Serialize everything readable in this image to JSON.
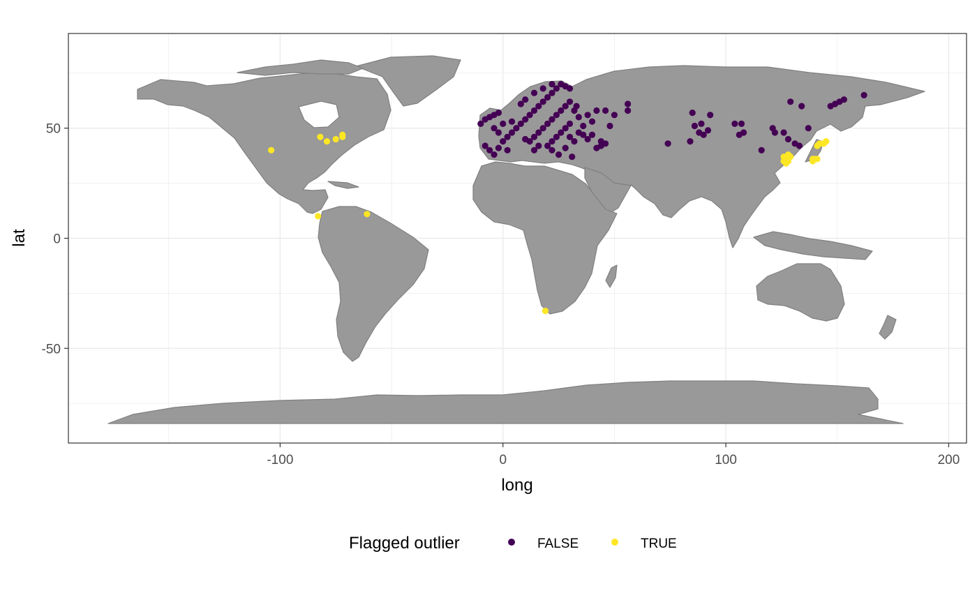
{
  "chart_data": {
    "type": "scatter",
    "background": "world-map",
    "xlabel": "long",
    "ylabel": "lat",
    "xlim": [
      -195,
      208
    ],
    "ylim": [
      -93,
      93
    ],
    "x_ticks": [
      {
        "value": -100,
        "label": "-100"
      },
      {
        "value": 0,
        "label": "0"
      },
      {
        "value": 100,
        "label": "100"
      },
      {
        "value": 200,
        "label": "200"
      }
    ],
    "y_ticks": [
      {
        "value": -50,
        "label": "-50"
      },
      {
        "value": 0,
        "label": "0"
      },
      {
        "value": 50,
        "label": "50"
      }
    ],
    "grid": true,
    "legend": {
      "title": "Flagged outlier",
      "position": "bottom",
      "entries": [
        {
          "key": "false",
          "label": "FALSE",
          "color": "#440154"
        },
        {
          "key": "true",
          "label": "TRUE",
          "color": "#FDE725"
        }
      ]
    },
    "colors": {
      "land": "#999999",
      "border": "#808080",
      "grid": "#ebebeb",
      "panel_border": "#333333"
    },
    "series": [
      {
        "key": "false",
        "points": [
          [
            -10,
            52
          ],
          [
            -8,
            54
          ],
          [
            -6,
            55
          ],
          [
            -4,
            56
          ],
          [
            -2,
            57
          ],
          [
            -8,
            42
          ],
          [
            -6,
            40
          ],
          [
            -4,
            38
          ],
          [
            -2,
            41
          ],
          [
            0,
            44
          ],
          [
            2,
            46
          ],
          [
            4,
            48
          ],
          [
            6,
            50
          ],
          [
            8,
            52
          ],
          [
            10,
            54
          ],
          [
            12,
            56
          ],
          [
            14,
            58
          ],
          [
            16,
            60
          ],
          [
            18,
            62
          ],
          [
            20,
            64
          ],
          [
            22,
            66
          ],
          [
            24,
            68
          ],
          [
            26,
            70
          ],
          [
            28,
            69
          ],
          [
            30,
            68
          ],
          [
            10,
            45
          ],
          [
            12,
            44
          ],
          [
            14,
            46
          ],
          [
            16,
            48
          ],
          [
            18,
            50
          ],
          [
            20,
            52
          ],
          [
            22,
            54
          ],
          [
            24,
            56
          ],
          [
            26,
            58
          ],
          [
            28,
            60
          ],
          [
            30,
            62
          ],
          [
            8,
            61
          ],
          [
            10,
            63
          ],
          [
            14,
            66
          ],
          [
            18,
            68
          ],
          [
            22,
            70
          ],
          [
            -4,
            50
          ],
          [
            0,
            52
          ],
          [
            4,
            53
          ],
          [
            -2,
            48
          ],
          [
            2,
            40
          ],
          [
            20,
            42
          ],
          [
            22,
            44
          ],
          [
            24,
            46
          ],
          [
            26,
            48
          ],
          [
            28,
            50
          ],
          [
            30,
            52
          ],
          [
            22,
            40
          ],
          [
            25,
            38
          ],
          [
            28,
            41
          ],
          [
            16,
            42
          ],
          [
            14,
            40
          ],
          [
            30,
            46
          ],
          [
            34,
            48
          ],
          [
            32,
            44
          ],
          [
            36,
            51
          ],
          [
            40,
            53
          ],
          [
            38,
            56
          ],
          [
            42,
            58
          ],
          [
            46,
            58
          ],
          [
            50,
            56
          ],
          [
            56,
            58
          ],
          [
            56,
            61
          ],
          [
            36,
            47
          ],
          [
            40,
            47
          ],
          [
            44,
            44
          ],
          [
            44,
            42
          ],
          [
            46,
            43
          ],
          [
            42,
            41
          ],
          [
            31,
            37
          ],
          [
            34,
            55
          ],
          [
            32,
            58
          ],
          [
            33,
            60
          ],
          [
            38,
            45
          ],
          [
            48,
            51
          ],
          [
            74,
            43
          ],
          [
            84,
            44
          ],
          [
            88,
            48
          ],
          [
            86,
            51
          ],
          [
            89,
            52
          ],
          [
            92,
            49
          ],
          [
            90,
            47
          ],
          [
            93,
            56
          ],
          [
            85,
            57
          ],
          [
            104,
            52
          ],
          [
            107,
            52
          ],
          [
            108,
            48
          ],
          [
            106,
            47
          ],
          [
            116,
            40
          ],
          [
            121,
            50
          ],
          [
            122,
            48
          ],
          [
            126,
            48
          ],
          [
            128,
            45
          ],
          [
            131,
            43
          ],
          [
            133,
            42
          ],
          [
            137,
            50
          ],
          [
            129,
            62
          ],
          [
            134,
            60
          ],
          [
            147,
            60
          ],
          [
            149,
            61
          ],
          [
            151,
            62
          ],
          [
            153,
            63
          ],
          [
            162,
            65
          ]
        ]
      },
      {
        "key": "true",
        "points": [
          [
            -104,
            40
          ],
          [
            -82,
            46
          ],
          [
            -79,
            44
          ],
          [
            -75,
            45
          ],
          [
            -72,
            46
          ],
          [
            -72,
            47
          ],
          [
            -83,
            10
          ],
          [
            -61,
            11
          ],
          [
            19,
            -33
          ],
          [
            126,
            37
          ],
          [
            127,
            36
          ],
          [
            128,
            35
          ],
          [
            128,
            38
          ],
          [
            127,
            34
          ],
          [
            129,
            37
          ],
          [
            126,
            35
          ],
          [
            139,
            36
          ],
          [
            140,
            36
          ],
          [
            139,
            35
          ],
          [
            141,
            36
          ],
          [
            142,
            43
          ],
          [
            143,
            43
          ],
          [
            144,
            43
          ],
          [
            141,
            42
          ],
          [
            145,
            44
          ]
        ]
      }
    ]
  }
}
